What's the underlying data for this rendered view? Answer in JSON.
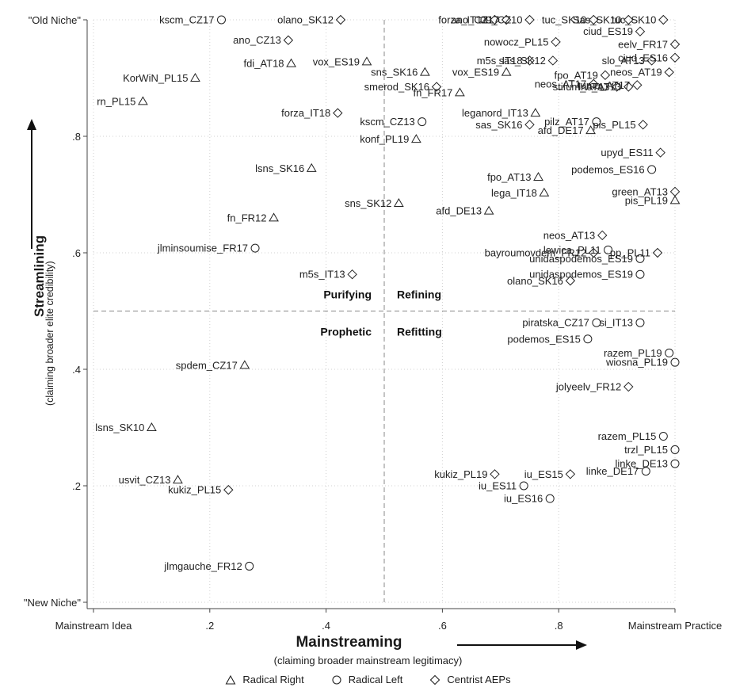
{
  "chart_data": {
    "type": "scatter",
    "title": "",
    "xlabel": "Mainstreaming",
    "xlabel_sub": "(claiming broader mainstream legitimacy)",
    "ylabel": "Streamlining",
    "ylabel_sub": "(claiming broader elite credibility)",
    "xlim": [
      0,
      1
    ],
    "ylim": [
      0,
      1
    ],
    "x_ticks": [
      {
        "value": 0,
        "label": "Mainstream Idea"
      },
      {
        "value": 0.2,
        "label": ".2"
      },
      {
        "value": 0.4,
        "label": ".4"
      },
      {
        "value": 0.6,
        "label": ".6"
      },
      {
        "value": 0.8,
        "label": ".8"
      },
      {
        "value": 1,
        "label": "Mainstream Practice"
      }
    ],
    "y_ticks": [
      {
        "value": 0,
        "label": "\"New Niche\""
      },
      {
        "value": 0.2,
        "label": ".2"
      },
      {
        "value": 0.4,
        "label": ".4"
      },
      {
        "value": 0.6,
        "label": ".6"
      },
      {
        "value": 0.8,
        "label": ".8"
      },
      {
        "value": 1,
        "label": "\"Old Niche\""
      }
    ],
    "reference_lines": {
      "x": 0.5,
      "y": 0.5
    },
    "quadrants": [
      {
        "label": "Purifying",
        "position": "top-left"
      },
      {
        "label": "Refining",
        "position": "top-right"
      },
      {
        "label": "Prophetic",
        "position": "bottom-left"
      },
      {
        "label": "Refitting",
        "position": "bottom-right"
      }
    ],
    "legend": [
      {
        "name": "Radical Right",
        "marker": "triangle"
      },
      {
        "name": "Radical Left",
        "marker": "circle"
      },
      {
        "name": "Centrist AEPs",
        "marker": "diamond"
      }
    ],
    "legend_position": "bottom",
    "points": [
      {
        "label": "kscm_CZ17",
        "x": 0.22,
        "y": 1.0,
        "group": "Radical Left"
      },
      {
        "label": "olano_SK12",
        "x": 0.425,
        "y": 1.0,
        "group": "Centrist AEPs"
      },
      {
        "label": "forza_IT13",
        "x": 0.69,
        "y": 1.0,
        "group": "Centrist AEPs"
      },
      {
        "label": "ano_CZ17",
        "x": 0.71,
        "y": 1.0,
        "group": "Centrist AEPs"
      },
      {
        "label": "09_CZ10",
        "x": 0.75,
        "y": 1.0,
        "group": "Centrist AEPs"
      },
      {
        "label": "tuc_SK10",
        "x": 0.86,
        "y": 1.0,
        "group": "Centrist AEPs"
      },
      {
        "label": "Sas_SK10",
        "x": 0.92,
        "y": 1.0,
        "group": "Centrist AEPs"
      },
      {
        "label": "tuc_SK10",
        "x": 0.98,
        "y": 1.0,
        "group": "Centrist AEPs"
      },
      {
        "label": "ano_CZ13",
        "x": 0.335,
        "y": 0.965,
        "group": "Centrist AEPs"
      },
      {
        "label": "ciud_ES19",
        "x": 0.94,
        "y": 0.98,
        "group": "Centrist AEPs"
      },
      {
        "label": "nowocz_PL15",
        "x": 0.795,
        "y": 0.962,
        "group": "Centrist AEPs"
      },
      {
        "label": "eelv_FR17",
        "x": 1.0,
        "y": 0.958,
        "group": "Centrist AEPs"
      },
      {
        "label": "fdi_AT18",
        "x": 0.34,
        "y": 0.925,
        "group": "Radical Right"
      },
      {
        "label": "vox_ES19",
        "x": 0.47,
        "y": 0.928,
        "group": "Radical Right"
      },
      {
        "label": "m5s_IT18",
        "x": 0.75,
        "y": 0.93,
        "group": "Centrist AEPs"
      },
      {
        "label": "sas_SK12",
        "x": 0.79,
        "y": 0.93,
        "group": "Centrist AEPs"
      },
      {
        "label": "slo_AT13",
        "x": 0.96,
        "y": 0.93,
        "group": "Centrist AEPs"
      },
      {
        "label": "ciud_ES16",
        "x": 1.0,
        "y": 0.935,
        "group": "Centrist AEPs"
      },
      {
        "label": "sns_SK16",
        "x": 0.57,
        "y": 0.91,
        "group": "Radical Right"
      },
      {
        "label": "vox_ES19",
        "x": 0.71,
        "y": 0.91,
        "group": "Radical Right"
      },
      {
        "label": "fpo_AT19",
        "x": 0.88,
        "y": 0.905,
        "group": "Centrist AEPs"
      },
      {
        "label": "neos_AT19",
        "x": 0.99,
        "y": 0.91,
        "group": "Centrist AEPs"
      },
      {
        "label": "KorWiN_PL15",
        "x": 0.175,
        "y": 0.9,
        "group": "Radical Right"
      },
      {
        "label": "smerod_SK16",
        "x": 0.59,
        "y": 0.885,
        "group": "Centrist AEPs"
      },
      {
        "label": "neos_AT17",
        "x": 0.86,
        "y": 0.89,
        "group": "Centrist AEPs"
      },
      {
        "label": "stifum_AT13",
        "x": 0.9,
        "y": 0.885,
        "group": "Centrist AEPs"
      },
      {
        "label": "tuma_AT17",
        "x": 0.935,
        "y": 0.888,
        "group": "Centrist AEPs"
      },
      {
        "label": "lnc_AT13",
        "x": 0.92,
        "y": 0.885,
        "group": "Centrist AEPs"
      },
      {
        "label": "fn_FR17",
        "x": 0.63,
        "y": 0.875,
        "group": "Radical Right"
      },
      {
        "label": "rn_PL15",
        "x": 0.085,
        "y": 0.86,
        "group": "Radical Right"
      },
      {
        "label": "forza_IT18",
        "x": 0.42,
        "y": 0.84,
        "group": "Centrist AEPs"
      },
      {
        "label": "leganord_IT13",
        "x": 0.76,
        "y": 0.84,
        "group": "Radical Right"
      },
      {
        "label": "kscm_CZ13",
        "x": 0.565,
        "y": 0.825,
        "group": "Radical Left"
      },
      {
        "label": "sas_SK16",
        "x": 0.75,
        "y": 0.82,
        "group": "Centrist AEPs"
      },
      {
        "label": "pilz_AT17",
        "x": 0.865,
        "y": 0.825,
        "group": "Radical Left"
      },
      {
        "label": "pis_PL15",
        "x": 0.945,
        "y": 0.82,
        "group": "Centrist AEPs"
      },
      {
        "label": "afd_DE17",
        "x": 0.855,
        "y": 0.81,
        "group": "Radical Right"
      },
      {
        "label": "konf_PL19",
        "x": 0.555,
        "y": 0.795,
        "group": "Radical Right"
      },
      {
        "label": "upyd_ES11",
        "x": 0.975,
        "y": 0.772,
        "group": "Centrist AEPs"
      },
      {
        "label": "lsns_SK16",
        "x": 0.375,
        "y": 0.745,
        "group": "Radical Right"
      },
      {
        "label": "podemos_ES16",
        "x": 0.96,
        "y": 0.743,
        "group": "Radical Left"
      },
      {
        "label": "fpo_AT13",
        "x": 0.765,
        "y": 0.73,
        "group": "Radical Right"
      },
      {
        "label": "green_AT13",
        "x": 1.0,
        "y": 0.705,
        "group": "Centrist AEPs"
      },
      {
        "label": "lega_IT18",
        "x": 0.775,
        "y": 0.703,
        "group": "Radical Right"
      },
      {
        "label": "pis_PL19",
        "x": 1.0,
        "y": 0.69,
        "group": "Radical Right"
      },
      {
        "label": "sns_SK12",
        "x": 0.525,
        "y": 0.685,
        "group": "Radical Right"
      },
      {
        "label": "afd_DE13",
        "x": 0.68,
        "y": 0.672,
        "group": "Radical Right"
      },
      {
        "label": "fn_FR12",
        "x": 0.31,
        "y": 0.66,
        "group": "Radical Right"
      },
      {
        "label": "neos_AT13",
        "x": 0.875,
        "y": 0.63,
        "group": "Centrist AEPs"
      },
      {
        "label": "jlminsoumise_FR17",
        "x": 0.278,
        "y": 0.608,
        "group": "Radical Left"
      },
      {
        "label": "bayroumovdem_FR12",
        "x": 0.86,
        "y": 0.6,
        "group": "Centrist AEPs"
      },
      {
        "label": "lewica_PL11",
        "x": 0.885,
        "y": 0.605,
        "group": "Radical Left"
      },
      {
        "label": "pp_PL11",
        "x": 0.97,
        "y": 0.6,
        "group": "Centrist AEPs"
      },
      {
        "label": "unidaspodemos_ES19",
        "x": 0.94,
        "y": 0.59,
        "group": "Radical Left"
      },
      {
        "label": "m5s_IT13",
        "x": 0.445,
        "y": 0.563,
        "group": "Centrist AEPs"
      },
      {
        "label": "unidaspodemos_ES19",
        "x": 0.94,
        "y": 0.563,
        "group": "Radical Left"
      },
      {
        "label": "olano_SK16",
        "x": 0.82,
        "y": 0.552,
        "group": "Centrist AEPs"
      },
      {
        "label": "piratska_CZ17",
        "x": 0.865,
        "y": 0.48,
        "group": "Radical Left"
      },
      {
        "label": "si_IT13",
        "x": 0.94,
        "y": 0.48,
        "group": "Radical Left"
      },
      {
        "label": "podemos_ES15",
        "x": 0.85,
        "y": 0.452,
        "group": "Radical Left"
      },
      {
        "label": "razem_PL19",
        "x": 0.99,
        "y": 0.428,
        "group": "Radical Left"
      },
      {
        "label": "wiosna_PL19",
        "x": 1.0,
        "y": 0.412,
        "group": "Radical Left"
      },
      {
        "label": "spdem_CZ17",
        "x": 0.26,
        "y": 0.407,
        "group": "Radical Right"
      },
      {
        "label": "jolyeelv_FR12",
        "x": 0.92,
        "y": 0.37,
        "group": "Centrist AEPs"
      },
      {
        "label": "lsns_SK10",
        "x": 0.1,
        "y": 0.3,
        "group": "Radical Right"
      },
      {
        "label": "razem_PL15",
        "x": 0.98,
        "y": 0.285,
        "group": "Radical Left"
      },
      {
        "label": "trzl_PL15",
        "x": 1.0,
        "y": 0.262,
        "group": "Radical Left"
      },
      {
        "label": "linke_DE13",
        "x": 1.0,
        "y": 0.238,
        "group": "Radical Left"
      },
      {
        "label": "kukiz_PL19",
        "x": 0.69,
        "y": 0.22,
        "group": "Centrist AEPs"
      },
      {
        "label": "iu_ES15",
        "x": 0.82,
        "y": 0.22,
        "group": "Centrist AEPs"
      },
      {
        "label": "linke_DE17",
        "x": 0.95,
        "y": 0.225,
        "group": "Radical Left"
      },
      {
        "label": "usvit_CZ13",
        "x": 0.145,
        "y": 0.21,
        "group": "Radical Right"
      },
      {
        "label": "iu_ES11",
        "x": 0.74,
        "y": 0.2,
        "group": "Radical Left"
      },
      {
        "label": "kukiz_PL15",
        "x": 0.232,
        "y": 0.193,
        "group": "Centrist AEPs"
      },
      {
        "label": "iu_ES16",
        "x": 0.785,
        "y": 0.178,
        "group": "Radical Left"
      },
      {
        "label": "jlmgauche_FR12",
        "x": 0.268,
        "y": 0.062,
        "group": "Radical Left"
      }
    ]
  }
}
